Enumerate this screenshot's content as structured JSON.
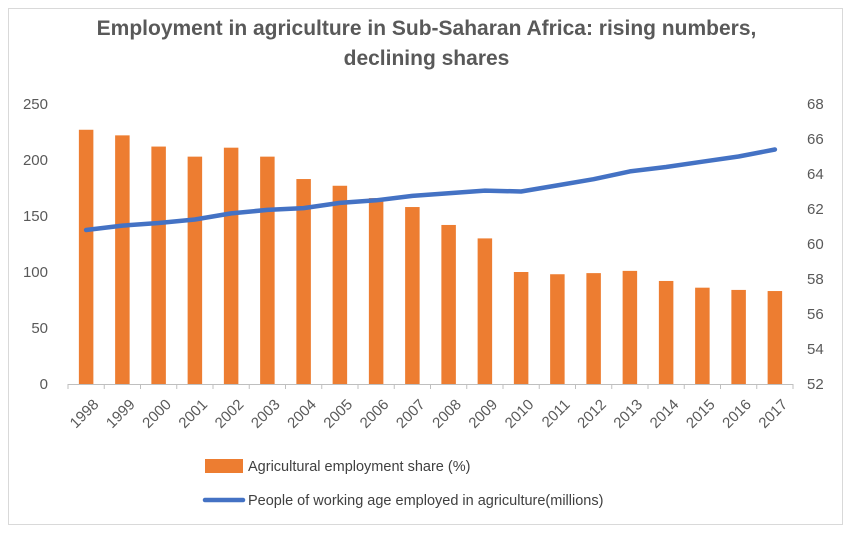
{
  "chart_data": {
    "type": "bar",
    "title": "Employment in agriculture in Sub-Saharan Africa: rising numbers, declining shares",
    "categories": [
      "1998",
      "1999",
      "2000",
      "2001",
      "2002",
      "2003",
      "2004",
      "2005",
      "2006",
      "2007",
      "2008",
      "2009",
      "2010",
      "2011",
      "2012",
      "2013",
      "2014",
      "2015",
      "2016",
      "2017"
    ],
    "series": [
      {
        "name": "Agricultural employment share (%)",
        "kind": "bar",
        "axis": "left",
        "color": "#ed7d31",
        "values": [
          227,
          222,
          212,
          203,
          211,
          203,
          183,
          177,
          166,
          158,
          142,
          130,
          100,
          98,
          99,
          101,
          92,
          86,
          84,
          83
        ]
      },
      {
        "name": "People of working age employed in agriculture(millions)",
        "kind": "line",
        "axis": "right",
        "color": "#4472c4",
        "values": [
          60.8,
          61.05,
          61.2,
          61.4,
          61.75,
          61.95,
          62.05,
          62.35,
          62.5,
          62.75,
          62.9,
          63.05,
          63.0,
          63.35,
          63.7,
          64.15,
          64.4,
          64.7,
          65.0,
          65.4
        ]
      }
    ],
    "y_left": {
      "min": 0,
      "max": 250,
      "ticks": [
        "0",
        "50",
        "100",
        "150",
        "200",
        "250"
      ]
    },
    "y_right": {
      "min": 52,
      "max": 68,
      "ticks": [
        "52",
        "54",
        "56",
        "58",
        "60",
        "62",
        "64",
        "66",
        "68"
      ]
    },
    "grid": false,
    "legend_position": "bottom"
  }
}
